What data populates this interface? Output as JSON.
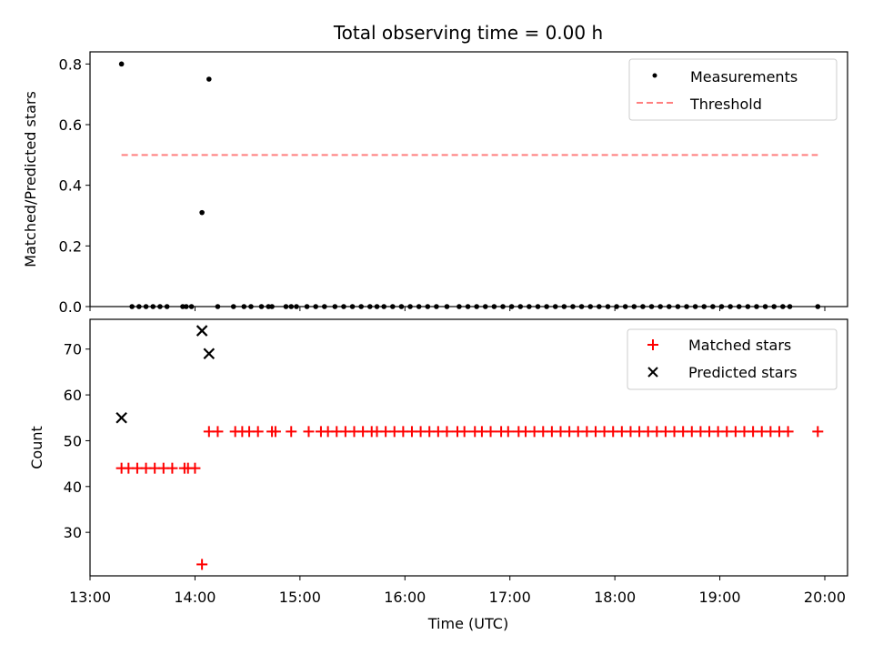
{
  "chart_data": [
    {
      "type": "scatter",
      "title": "Total observing time = 0.00 h",
      "ylabel": "Matched/Predicted stars",
      "xlabel": "",
      "xlim": [
        "13:00",
        "20:13"
      ],
      "ylim": [
        0,
        0.84
      ],
      "yticks": [
        0.0,
        0.2,
        0.4,
        0.6,
        0.8
      ],
      "ytick_labels": [
        "0.0",
        "0.2",
        "0.4",
        "0.6",
        "0.8"
      ],
      "legend": {
        "placement": "top-right",
        "entries": [
          "Measurements",
          "Threshold"
        ]
      },
      "series": [
        {
          "name": "Measurements",
          "color": "#000000",
          "marker": "dot",
          "x": [
            "13:18",
            "14:04",
            "14:08",
            "13:24",
            "13:28",
            "13:32",
            "13:36",
            "13:40",
            "13:44",
            "13:53",
            "13:55",
            "13:58",
            "14:13",
            "14:22",
            "14:28",
            "14:32",
            "14:38",
            "14:42",
            "14:44",
            "14:52",
            "14:55",
            "14:58",
            "15:04",
            "15:09",
            "15:14",
            "15:20",
            "15:25",
            "15:30",
            "15:35",
            "15:40",
            "15:44",
            "15:48",
            "15:53",
            "15:58",
            "16:03",
            "16:08",
            "16:13",
            "16:18",
            "16:24",
            "16:31",
            "16:36",
            "16:41",
            "16:46",
            "16:51",
            "16:56",
            "17:01",
            "17:06",
            "17:11",
            "17:16",
            "17:21",
            "17:26",
            "17:31",
            "17:36",
            "17:41",
            "17:46",
            "17:51",
            "17:56",
            "18:01",
            "18:06",
            "18:11",
            "18:16",
            "18:21",
            "18:26",
            "18:31",
            "18:36",
            "18:41",
            "18:46",
            "18:51",
            "18:56",
            "19:01",
            "19:06",
            "19:11",
            "19:16",
            "19:21",
            "19:26",
            "19:31",
            "19:36",
            "19:40",
            "19:56"
          ],
          "y": [
            0.8,
            0.31,
            0.75,
            0,
            0,
            0,
            0,
            0,
            0,
            0,
            0,
            0,
            0,
            0,
            0,
            0,
            0,
            0,
            0,
            0,
            0,
            0,
            0,
            0,
            0,
            0,
            0,
            0,
            0,
            0,
            0,
            0,
            0,
            0,
            0,
            0,
            0,
            0,
            0,
            0,
            0,
            0,
            0,
            0,
            0,
            0,
            0,
            0,
            0,
            0,
            0,
            0,
            0,
            0,
            0,
            0,
            0,
            0,
            0,
            0,
            0,
            0,
            0,
            0,
            0,
            0,
            0,
            0,
            0,
            0,
            0,
            0,
            0,
            0,
            0,
            0,
            0,
            0,
            0
          ]
        },
        {
          "name": "Threshold",
          "color": "#ff7f7f",
          "style": "dashed",
          "x": [
            "13:18",
            "19:56"
          ],
          "y": [
            0.5,
            0.5
          ]
        }
      ]
    },
    {
      "type": "scatter",
      "title": "",
      "ylabel": "Count",
      "xlabel": "Time (UTC)",
      "xlim": [
        "13:00",
        "20:13"
      ],
      "ylim": [
        20.5,
        76.5
      ],
      "yticks": [
        30,
        40,
        50,
        60,
        70
      ],
      "ytick_labels": [
        "30",
        "40",
        "50",
        "60",
        "70"
      ],
      "xticks": [
        "13:00",
        "14:00",
        "15:00",
        "16:00",
        "17:00",
        "18:00",
        "19:00",
        "20:00"
      ],
      "xtick_labels": [
        "13:00",
        "14:00",
        "15:00",
        "16:00",
        "17:00",
        "18:00",
        "19:00",
        "20:00"
      ],
      "legend": {
        "placement": "top-right",
        "entries": [
          "Matched stars",
          "Predicted stars"
        ]
      },
      "series": [
        {
          "name": "Matched stars",
          "color": "#ff0000",
          "marker": "plus",
          "x": [
            "13:18",
            "13:22",
            "13:27",
            "13:32",
            "13:37",
            "13:42",
            "13:47",
            "13:54",
            "13:56",
            "14:00",
            "14:04",
            "14:08",
            "14:13",
            "14:23",
            "14:27",
            "14:31",
            "14:36",
            "14:44",
            "14:46",
            "14:55",
            "15:05",
            "15:12",
            "15:16",
            "15:21",
            "15:26",
            "15:31",
            "15:36",
            "15:41",
            "15:44",
            "15:49",
            "15:54",
            "15:59",
            "16:04",
            "16:09",
            "16:14",
            "16:19",
            "16:24",
            "16:30",
            "16:34",
            "16:40",
            "16:44",
            "16:49",
            "16:55",
            "16:59",
            "17:05",
            "17:09",
            "17:14",
            "17:19",
            "17:24",
            "17:29",
            "17:34",
            "17:39",
            "17:44",
            "17:49",
            "17:54",
            "17:59",
            "18:04",
            "18:09",
            "18:14",
            "18:19",
            "18:24",
            "18:29",
            "18:34",
            "18:39",
            "18:44",
            "18:49",
            "18:54",
            "18:59",
            "19:04",
            "19:09",
            "19:14",
            "19:19",
            "19:24",
            "19:29",
            "19:34",
            "19:39",
            "19:56"
          ],
          "y": [
            44,
            44,
            44,
            44,
            44,
            44,
            44,
            44,
            44,
            44,
            23,
            52,
            52,
            52,
            52,
            52,
            52,
            52,
            52,
            52,
            52,
            52,
            52,
            52,
            52,
            52,
            52,
            52,
            52,
            52,
            52,
            52,
            52,
            52,
            52,
            52,
            52,
            52,
            52,
            52,
            52,
            52,
            52,
            52,
            52,
            52,
            52,
            52,
            52,
            52,
            52,
            52,
            52,
            52,
            52,
            52,
            52,
            52,
            52,
            52,
            52,
            52,
            52,
            52,
            52,
            52,
            52,
            52,
            52,
            52,
            52,
            52,
            52,
            52,
            52,
            52,
            52
          ]
        },
        {
          "name": "Predicted stars",
          "color": "#000000",
          "marker": "x",
          "x": [
            "13:18",
            "14:04",
            "14:08"
          ],
          "y": [
            55,
            74,
            69
          ]
        }
      ]
    }
  ]
}
